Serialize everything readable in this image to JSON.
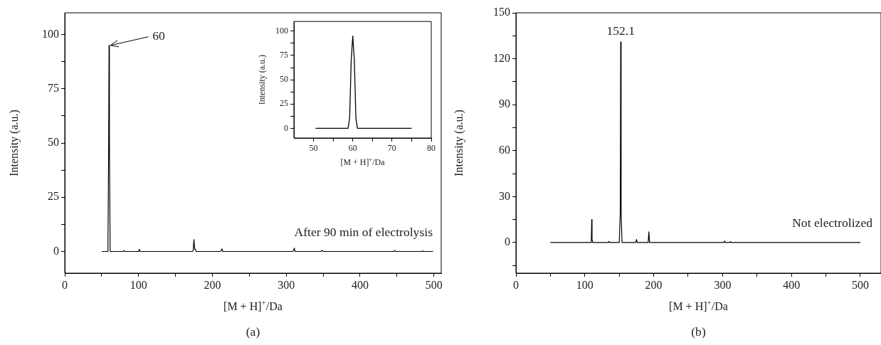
{
  "chart_data": [
    {
      "type": "line",
      "xlabel": "[M + H]$^{+}$/Da",
      "ylabel": "Intensity (a.u.)",
      "color": "#000000",
      "marker": "none",
      "x": [
        50,
        58.5,
        59.5,
        60,
        60.5,
        61.5,
        79,
        80,
        81,
        100,
        101,
        102,
        173,
        174,
        175,
        176,
        177,
        178,
        211,
        212,
        213,
        214,
        309,
        310,
        311,
        312,
        347,
        348,
        349,
        350,
        446,
        447,
        448,
        484,
        485,
        486,
        499
      ],
      "values": [
        0,
        0,
        50,
        95,
        50,
        0,
        0,
        0.5,
        0,
        0,
        1,
        0,
        0,
        0.5,
        5.5,
        1,
        1,
        0,
        0,
        0.5,
        1.2,
        0,
        0,
        0.5,
        1.5,
        0,
        0,
        0.3,
        0.5,
        0,
        0,
        0.5,
        0,
        0,
        0.3,
        0,
        0
      ],
      "xlim": [
        0,
        510
      ],
      "ylim": [
        -10,
        110
      ],
      "xticks": [
        0,
        {
          "value": 50,
          "label": null
        },
        100,
        {
          "value": 150,
          "label": null
        },
        200,
        {
          "value": 250,
          "label": null
        },
        300,
        {
          "value": 350,
          "label": null
        },
        400,
        {
          "value": 450,
          "label": null
        },
        500
      ],
      "yticks": [
        0,
        {
          "value": 12.5,
          "label": null
        },
        25,
        {
          "value": 37.5,
          "label": null
        },
        50,
        {
          "value": 62.5,
          "label": null
        },
        75,
        {
          "value": 87.5,
          "label": null
        },
        100
      ],
      "annotations": [
        {
          "text": "60",
          "x": 60,
          "y": 95
        },
        "After 90 min of electrolysis",
        "(a)"
      ]
    },
    {
      "type": "line",
      "xlabel": "[M + H]$^{+}$/Da",
      "ylabel": "Intensity (a.u.)",
      "color": "#000000",
      "marker": "none",
      "x": [
        50.5,
        58.8,
        59.2,
        59.6,
        60,
        60.4,
        60.8,
        61.2,
        75
      ],
      "values": [
        0,
        0,
        10,
        70,
        95,
        70,
        10,
        0,
        0
      ],
      "xlim": [
        45,
        80
      ],
      "ylim": [
        -10,
        110
      ],
      "xticks": [
        50,
        {
          "value": 55,
          "label": null
        },
        60,
        {
          "value": 65,
          "label": null
        },
        70,
        {
          "value": 75,
          "label": null
        },
        80
      ],
      "yticks": [
        0,
        {
          "value": 12.5,
          "label": null
        },
        25,
        {
          "value": 37.5,
          "label": null
        },
        50,
        {
          "value": 62.5,
          "label": null
        },
        75,
        {
          "value": 87.5,
          "label": null
        },
        100
      ]
    },
    {
      "type": "line",
      "xlabel": "[M + H]$^{+}$/Da",
      "ylabel": "Intensity (a.u.)",
      "color": "#000000",
      "marker": "none",
      "x": [
        50,
        108.5,
        109.5,
        110,
        110.5,
        111.5,
        134,
        135,
        136,
        150,
        151.5,
        152.1,
        152.7,
        154,
        174,
        175,
        176,
        192,
        193,
        194,
        302,
        303,
        304,
        310,
        311,
        312,
        500
      ],
      "values": [
        0,
        0,
        2,
        15,
        2,
        0,
        0,
        0.7,
        0,
        0,
        20,
        131,
        20,
        0,
        0,
        2,
        0,
        0,
        7,
        0,
        0,
        1,
        0,
        0,
        0.5,
        0,
        0
      ],
      "xlim": [
        0,
        530
      ],
      "ylim": [
        -20,
        150
      ],
      "xticks": [
        0,
        {
          "value": 50,
          "label": null
        },
        100,
        {
          "value": 150,
          "label": null
        },
        200,
        {
          "value": 250,
          "label": null
        },
        300,
        {
          "value": 350,
          "label": null
        },
        400,
        {
          "value": 450,
          "label": null
        },
        500
      ],
      "yticks": [
        {
          "value": -15,
          "label": null
        },
        0,
        {
          "value": 15,
          "label": null
        },
        30,
        {
          "value": 45,
          "label": null
        },
        60,
        {
          "value": 75,
          "label": null
        },
        90,
        {
          "value": 105,
          "label": null
        },
        120,
        {
          "value": 135,
          "label": null
        },
        150
      ],
      "annotations": [
        {
          "text": "152.1",
          "x": 152.1,
          "y": 131
        },
        "Not electrolized",
        "(b)"
      ]
    }
  ]
}
